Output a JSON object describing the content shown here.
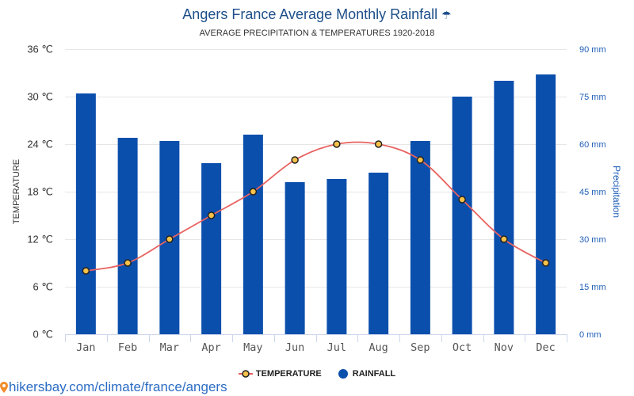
{
  "chart_data": {
    "type": "bar",
    "title": "Angers France Average Monthly Rainfall",
    "title_icon": {
      "name": "umbrella-icon",
      "glyph": "☂"
    },
    "subtitle": "AVERAGE PRECIPITATION & TEMPERATURES 1920-2018",
    "categories": [
      "Jan",
      "Feb",
      "Mar",
      "Apr",
      "May",
      "Jun",
      "Jul",
      "Aug",
      "Sep",
      "Oct",
      "Nov",
      "Dec"
    ],
    "series": [
      {
        "name": "TEMPERATURE",
        "type": "line",
        "axis": "left",
        "values": [
          8,
          9,
          12,
          15,
          18,
          22,
          24,
          24,
          22,
          17,
          12,
          9
        ]
      },
      {
        "name": "RAINFALL",
        "type": "bar",
        "axis": "right",
        "values": [
          76,
          62,
          61,
          54,
          63,
          48,
          49,
          51,
          61,
          75,
          80,
          82
        ]
      }
    ],
    "ylabel": "TEMPERATURE",
    "y2label": "Precipitation",
    "ylim": [
      0,
      36
    ],
    "y2lim": [
      0,
      90
    ],
    "yticks": [
      {
        "value": 0,
        "label": "0 ℃"
      },
      {
        "value": 6,
        "label": "6 ℃"
      },
      {
        "value": 12,
        "label": "12 ℃"
      },
      {
        "value": 18,
        "label": "18 ℃"
      },
      {
        "value": 24,
        "label": "24 ℃"
      },
      {
        "value": 30,
        "label": "30 ℃"
      },
      {
        "value": 36,
        "label": "36 ℃"
      }
    ],
    "y2ticks": [
      {
        "value": 0,
        "label": "0 mm"
      },
      {
        "value": 15,
        "label": "15 mm"
      },
      {
        "value": 30,
        "label": "30 mm"
      },
      {
        "value": 45,
        "label": "45 mm"
      },
      {
        "value": 60,
        "label": "60 mm"
      },
      {
        "value": 75,
        "label": "75 mm"
      },
      {
        "value": 90,
        "label": "90 mm"
      }
    ],
    "grid": true,
    "legend": "bottom"
  },
  "colors": {
    "title": "#1d4e89",
    "rainfall_bar": "#0b4fad",
    "temperature_line": "#e8625f",
    "temperature_marker": "#f7c24a",
    "marker_stroke": "#222222",
    "right_axis": "#2160b8",
    "left_axis": "#333333",
    "grid": "#e6e6e6",
    "axis_line": "#ccd6eb",
    "link": "#2b6cc4",
    "pin": "#f28d2c"
  },
  "footer": {
    "icon": "map-pin-icon",
    "link_text": "hikersbay.com/climate/france/angers"
  }
}
